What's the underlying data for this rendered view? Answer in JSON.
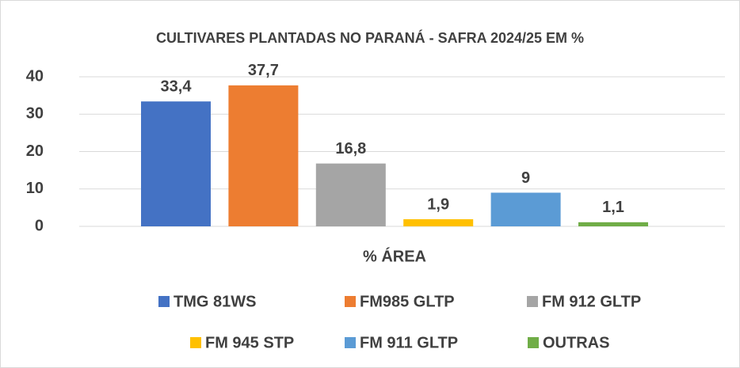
{
  "chart_data": {
    "type": "bar",
    "title": "CULTIVARES PLANTADAS NO PARANÁ - SAFRA 2024/25 EM %",
    "categories": [
      "% ÁREA"
    ],
    "series": [
      {
        "name": "TMG 81WS",
        "color": "#4472c4",
        "values": [
          33.4
        ],
        "value_labels": [
          "33,4"
        ]
      },
      {
        "name": "FM985 GLTP",
        "color": "#ed7d31",
        "values": [
          37.7
        ],
        "value_labels": [
          "37,7"
        ]
      },
      {
        "name": "FM 912 GLTP",
        "color": "#a5a5a5",
        "values": [
          16.8
        ],
        "value_labels": [
          "16,8"
        ]
      },
      {
        "name": "FM 945 STP",
        "color": "#ffc000",
        "values": [
          1.9
        ],
        "value_labels": [
          "1,9"
        ]
      },
      {
        "name": "FM 911 GLTP",
        "color": "#5b9bd5",
        "values": [
          9
        ],
        "value_labels": [
          "9"
        ]
      },
      {
        "name": "OUTRAS",
        "color": "#70ad47",
        "values": [
          1.1
        ],
        "value_labels": [
          "1,1"
        ]
      }
    ],
    "ylim": [
      0,
      40
    ],
    "yticks": [
      0,
      10,
      20,
      30,
      40
    ],
    "grid": true,
    "legend": "bottom"
  }
}
